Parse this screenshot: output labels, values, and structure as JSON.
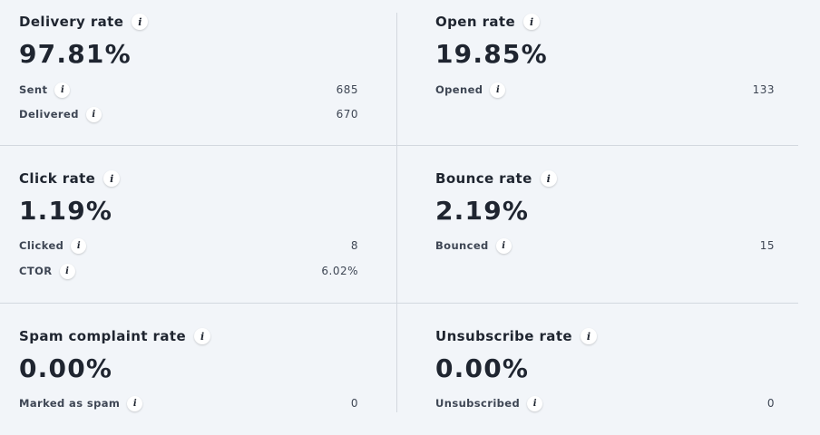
{
  "cards": [
    {
      "title": "Delivery rate",
      "value": "97.81%",
      "metrics": [
        {
          "label": "Sent",
          "value": "685"
        },
        {
          "label": "Delivered",
          "value": "670"
        }
      ]
    },
    {
      "title": "Open rate",
      "value": "19.85%",
      "metrics": [
        {
          "label": "Opened",
          "value": "133"
        }
      ]
    },
    {
      "title": "Click rate",
      "value": "1.19%",
      "metrics": [
        {
          "label": "Clicked",
          "value": "8"
        },
        {
          "label": "CTOR",
          "value": "6.02%"
        }
      ]
    },
    {
      "title": "Bounce rate",
      "value": "2.19%",
      "metrics": [
        {
          "label": "Bounced",
          "value": "15"
        }
      ]
    },
    {
      "title": "Spam complaint rate",
      "value": "0.00%",
      "metrics": [
        {
          "label": "Marked as spam",
          "value": "0"
        }
      ]
    },
    {
      "title": "Unsubscribe rate",
      "value": "0.00%",
      "metrics": [
        {
          "label": "Unsubscribed",
          "value": "0"
        }
      ]
    }
  ],
  "icons": {
    "info": "info-icon"
  }
}
